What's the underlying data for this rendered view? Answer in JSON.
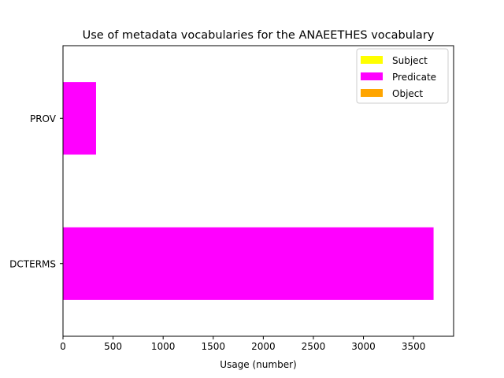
{
  "chart_data": {
    "type": "bar",
    "orientation": "horizontal",
    "title": "Use of metadata vocabularies for the ANAEETHES vocabulary",
    "xlabel": "Usage (number)",
    "ylabel": "",
    "categories": [
      "DCTERMS",
      "PROV"
    ],
    "series": [
      {
        "name": "Subject",
        "color": "#ffff00",
        "values": [
          0,
          0
        ]
      },
      {
        "name": "Predicate",
        "color": "#ff00ff",
        "values": [
          3700,
          330
        ]
      },
      {
        "name": "Object",
        "color": "#ffa500",
        "values": [
          0,
          0
        ]
      }
    ],
    "xlim": [
      0,
      3900
    ],
    "xticks": [
      0,
      500,
      1000,
      1500,
      2000,
      2500,
      3000,
      3500
    ],
    "grid": false,
    "legend_position": "top-right"
  }
}
